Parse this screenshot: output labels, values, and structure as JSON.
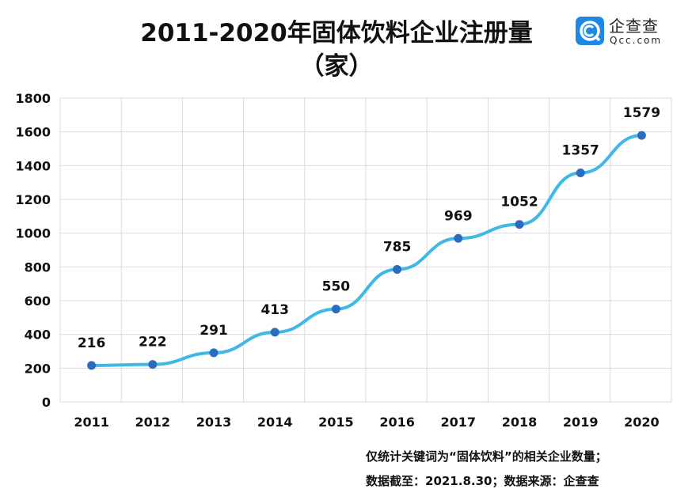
{
  "title_line1": "2011-2020年固体饮料企业注册量",
  "title_line2": "（家）",
  "logo": {
    "cn": "企查查",
    "en": "Qcc.com"
  },
  "footnote_line1": "仅统计关键词为“固体饮料”的相关企业数量；",
  "footnote_line2": "数据截至：2021.8.30；数据来源：企查查",
  "colors": {
    "line": "#3fb8e6",
    "marker": "#2b6cc0",
    "grid": "#d9d9d9"
  },
  "chart_data": {
    "type": "line",
    "title": "2011-2020年固体饮料企业注册量（家）",
    "xlabel": "",
    "ylabel": "",
    "categories": [
      "2011",
      "2012",
      "2013",
      "2014",
      "2015",
      "2016",
      "2017",
      "2018",
      "2019",
      "2020"
    ],
    "values": [
      216,
      222,
      291,
      413,
      550,
      785,
      969,
      1052,
      1357,
      1579
    ],
    "ylim": [
      0,
      1800
    ],
    "yticks": [
      0,
      200,
      400,
      600,
      800,
      1000,
      1200,
      1400,
      1600,
      1800
    ],
    "grid": true,
    "legend": "none"
  }
}
